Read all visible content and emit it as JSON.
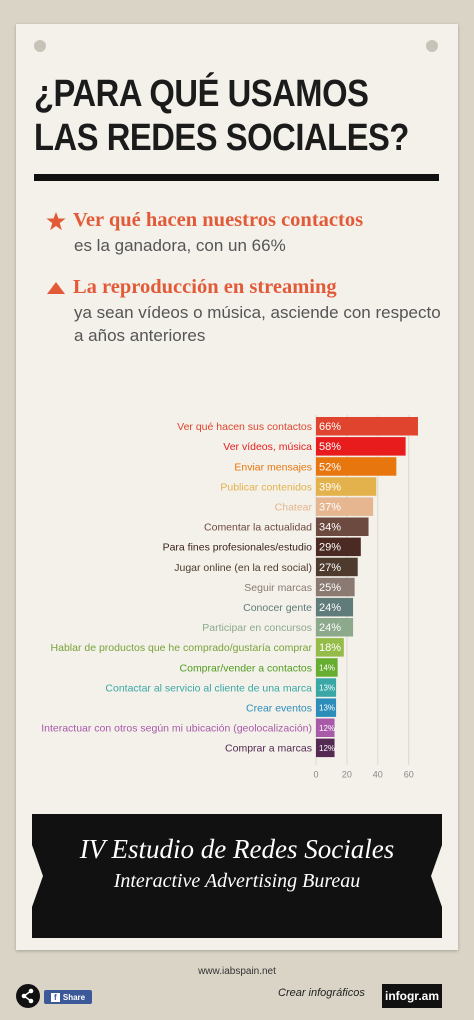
{
  "title": {
    "line1": "¿PARA QUÉ USAMOS",
    "line2": "LAS REDES SOCIALES?"
  },
  "highlights": [
    {
      "icon": "star-icon",
      "head": "Ver qué hacen nuestros contactos",
      "sub": "es la ganadora, con un 66%"
    },
    {
      "icon": "triangle-up-icon",
      "head": "La reproducción en streaming",
      "sub": "ya sean vídeos o música, asciende con respecto a años anteriores"
    }
  ],
  "chart_data": {
    "type": "bar",
    "orientation": "horizontal",
    "categories": [
      "Ver qué hacen sus contactos",
      "Ver vídeos, música",
      "Enviar mensajes",
      "Publicar contenidos",
      "Chatear",
      "Comentar la actualidad",
      "Para fines profesionales/estudio",
      "Jugar online (en la red social)",
      "Seguir marcas",
      "Conocer gente",
      "Participar en concursos",
      "Hablar de productos que he comprado/gustaría comprar",
      "Comprar/vender a contactos",
      "Contactar al servicio al cliente de una marca",
      "Crear eventos",
      "Interactuar con otros según mi ubicación (geolocalización)",
      "Comprar a marcas"
    ],
    "values": [
      66,
      58,
      52,
      39,
      37,
      34,
      29,
      27,
      25,
      24,
      24,
      18,
      14,
      13,
      13,
      12,
      12
    ],
    "value_labels": [
      "66%",
      "58%",
      "52%",
      "39%",
      "37%",
      "34%",
      "29%",
      "27%",
      "25%",
      "24%",
      "24%",
      "18%",
      "14%",
      "13%",
      "13%",
      "12%",
      "12%"
    ],
    "colors": [
      "#e0442e",
      "#e81c1c",
      "#e8760f",
      "#e3b24c",
      "#e5b68f",
      "#6d4a3f",
      "#4a2a22",
      "#4f3b2e",
      "#8a7a72",
      "#5f7b7a",
      "#8da98c",
      "#95bb48",
      "#67ad2f",
      "#39a7a6",
      "#2c8dbb",
      "#a85aa8",
      "#522a52"
    ],
    "label_colors": [
      "#e0442e",
      "#e81c1c",
      "#e8760f",
      "#e3b24c",
      "#e5b68f",
      "#6d4a3f",
      "#3a1f1a",
      "#4f3b2e",
      "#8a7a72",
      "#5f7b7a",
      "#8da98c",
      "#7aa23a",
      "#4f9c1e",
      "#39a7a6",
      "#2c8dbb",
      "#a85aa8",
      "#522a52"
    ],
    "xticks": [
      0,
      20,
      40,
      60
    ],
    "xlim": [
      0,
      66
    ],
    "grid": true,
    "legend": "none"
  },
  "banner": {
    "line1": "IV Estudio de Redes Sociales",
    "line2": "Interactive Advertising Bureau"
  },
  "footer": {
    "url": "www.iabspain.net",
    "share_label": "Share",
    "create_label": "Crear infográficos",
    "brand": "infogr.am"
  }
}
